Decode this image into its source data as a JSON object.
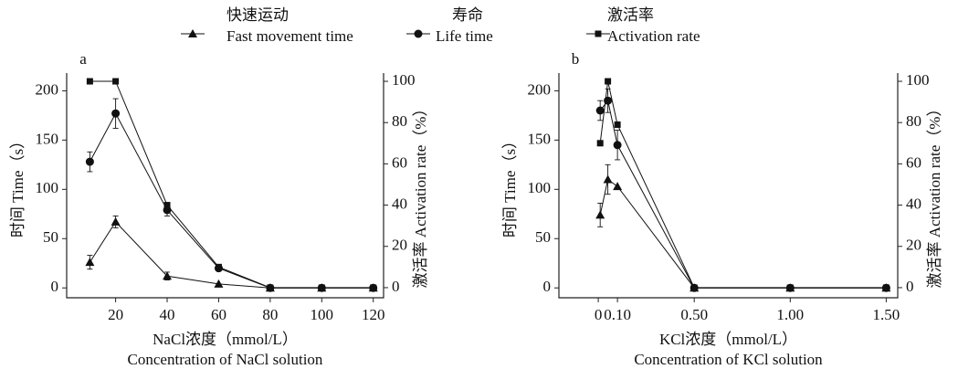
{
  "legend": [
    {
      "marker": "triangle",
      "zh": "快速运动",
      "en": "Fast movement time"
    },
    {
      "marker": "circle",
      "zh": "寿命",
      "en": "Life time"
    },
    {
      "marker": "square",
      "zh": "激活率",
      "en": "Activation rate"
    }
  ],
  "chart_data": [
    {
      "type": "line",
      "label": "a",
      "x_label": "NaCl浓度（mmol/L）",
      "x_label_en": "Concentration of NaCl solution",
      "y_label": "时间  Time（s）",
      "y2_label": "激活率  Activation rate（%）",
      "x": [
        10,
        20,
        40,
        60,
        80,
        100,
        120
      ],
      "xlim": [
        1,
        124
      ],
      "xticks": [
        20,
        40,
        60,
        80,
        100,
        120
      ],
      "ylim": [
        -10,
        218
      ],
      "yticks": [
        0,
        50,
        100,
        150,
        200
      ],
      "y2lim": [
        -4.9,
        104
      ],
      "y2ticks": [
        0,
        20,
        40,
        60,
        80,
        100
      ],
      "series": [
        {
          "marker": "triangle",
          "color": "#111",
          "values": [
            26,
            67,
            12,
            4,
            0,
            0,
            0
          ],
          "errors": [
            7,
            6,
            4,
            null,
            null,
            null,
            null
          ]
        },
        {
          "marker": "circle",
          "color": "#111",
          "values": [
            128,
            177,
            79,
            20,
            0,
            0,
            0
          ],
          "errors": [
            10,
            15,
            6,
            null,
            null,
            null,
            null
          ]
        },
        {
          "marker": "square",
          "color": "#111",
          "axis": "y2",
          "values": [
            100,
            100,
            40,
            10,
            0,
            0,
            0
          ],
          "errors": [
            null,
            null,
            null,
            null,
            null,
            null,
            null
          ]
        }
      ]
    },
    {
      "type": "line",
      "label": "b",
      "x_label": "KCl浓度（mmol/L）",
      "x_label_en": "Concentration of KCl solution",
      "y_label": "时间  Time（s）",
      "y2_label": "激活率  Activation rate（%）",
      "x": [
        0.01,
        0.05,
        0.1,
        0.5,
        1.0,
        1.5
      ],
      "xlim": [
        -0.205,
        1.56
      ],
      "xticks": [
        0,
        {
          "value": 0.1,
          "label": "0.10"
        },
        {
          "value": 0.5,
          "label": "0.50"
        },
        {
          "value": 1.0,
          "label": "1.00"
        },
        {
          "value": 1.5,
          "label": "1.50"
        }
      ],
      "ylim": [
        -10,
        218
      ],
      "yticks": [
        0,
        50,
        100,
        150,
        200
      ],
      "y2lim": [
        -4.9,
        104
      ],
      "y2ticks": [
        0,
        20,
        40,
        60,
        80,
        100
      ],
      "series": [
        {
          "marker": "triangle",
          "color": "#111",
          "values": [
            74,
            110,
            103,
            0,
            0,
            0
          ],
          "errors": [
            12,
            15,
            null,
            null,
            null,
            null
          ]
        },
        {
          "marker": "circle",
          "color": "#111",
          "values": [
            180,
            190,
            145,
            0,
            0,
            0
          ],
          "errors": [
            10,
            12,
            15,
            null,
            null,
            null
          ]
        },
        {
          "marker": "square",
          "color": "#111",
          "axis": "y2",
          "values": [
            70,
            100,
            79,
            0,
            0,
            0
          ],
          "errors": [
            null,
            null,
            null,
            null,
            null,
            null
          ]
        }
      ]
    }
  ]
}
